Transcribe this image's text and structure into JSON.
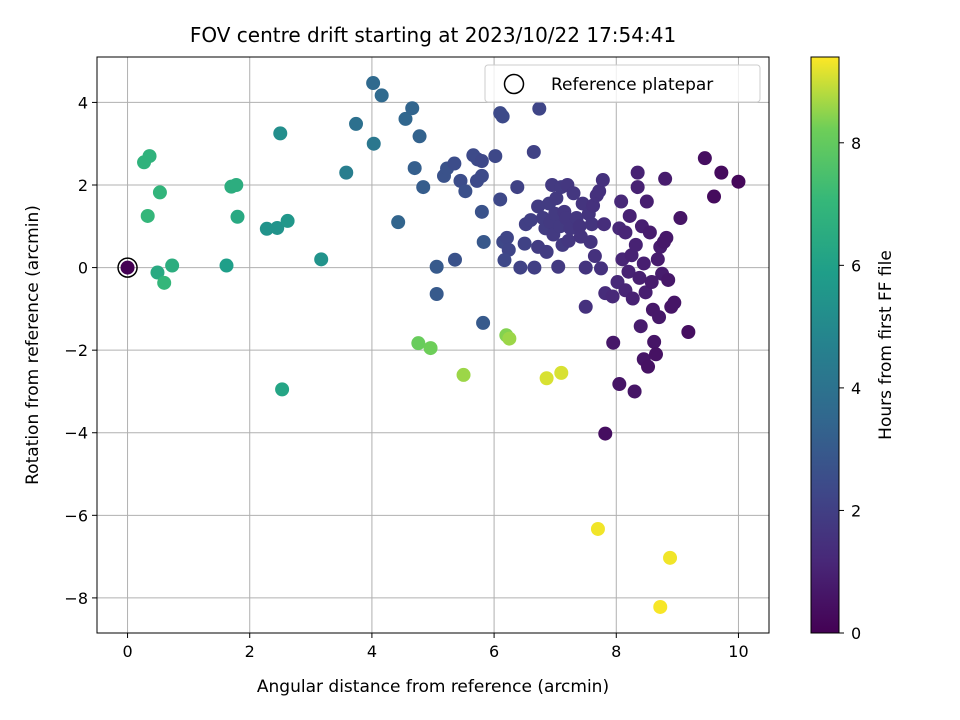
{
  "chart_data": {
    "type": "scatter",
    "title": "FOV centre drift starting at 2023/10/22 17:54:41",
    "xlabel": "Angular distance from reference (arcmin)",
    "ylabel": "Rotation from reference (arcmin)",
    "colorbar_label": "Hours from first FF file",
    "xlim": [
      -0.5,
      10.5
    ],
    "ylim": [
      -8.85,
      5.1
    ],
    "xticks": [
      0,
      2,
      4,
      6,
      8,
      10
    ],
    "yticks": [
      -8,
      -6,
      -4,
      -2,
      0,
      2,
      4
    ],
    "colorbar_range": [
      0,
      9.4
    ],
    "colorbar_ticks": [
      0,
      2,
      4,
      6,
      8
    ],
    "colormap": "viridis",
    "grid": true,
    "legend": {
      "position": "top-right",
      "entries": [
        "Reference platepar"
      ]
    },
    "reference_point": {
      "x": 0,
      "y": 0
    },
    "points": [
      {
        "x": 0.0,
        "y": 0.0,
        "t": 0.0
      },
      {
        "x": 0.49,
        "y": -0.12,
        "t": 6.4
      },
      {
        "x": 0.6,
        "y": -0.37,
        "t": 7.0
      },
      {
        "x": 0.73,
        "y": 0.05,
        "t": 6.6
      },
      {
        "x": 0.27,
        "y": 2.55,
        "t": 6.8
      },
      {
        "x": 0.36,
        "y": 2.7,
        "t": 6.8
      },
      {
        "x": 0.53,
        "y": 1.82,
        "t": 6.9
      },
      {
        "x": 0.33,
        "y": 1.25,
        "t": 7.0
      },
      {
        "x": 1.62,
        "y": 0.05,
        "t": 5.9
      },
      {
        "x": 1.7,
        "y": 1.96,
        "t": 6.6
      },
      {
        "x": 1.78,
        "y": 2.0,
        "t": 6.6
      },
      {
        "x": 1.8,
        "y": 1.23,
        "t": 6.4
      },
      {
        "x": 2.28,
        "y": 0.94,
        "t": 5.4
      },
      {
        "x": 2.45,
        "y": 0.96,
        "t": 5.4
      },
      {
        "x": 2.5,
        "y": 3.25,
        "t": 5.2
      },
      {
        "x": 2.62,
        "y": 1.13,
        "t": 5.6
      },
      {
        "x": 2.53,
        "y": -2.95,
        "t": 6.2
      },
      {
        "x": 3.17,
        "y": 0.2,
        "t": 5.4
      },
      {
        "x": 3.58,
        "y": 2.3,
        "t": 4.5
      },
      {
        "x": 3.74,
        "y": 3.48,
        "t": 3.9
      },
      {
        "x": 4.02,
        "y": 4.47,
        "t": 3.6
      },
      {
        "x": 4.16,
        "y": 4.17,
        "t": 3.6
      },
      {
        "x": 4.03,
        "y": 3.0,
        "t": 4.2
      },
      {
        "x": 4.43,
        "y": 1.1,
        "t": 3.4
      },
      {
        "x": 4.55,
        "y": 3.6,
        "t": 3.5
      },
      {
        "x": 4.66,
        "y": 3.86,
        "t": 3.4
      },
      {
        "x": 4.78,
        "y": 3.18,
        "t": 3.3
      },
      {
        "x": 4.7,
        "y": 2.41,
        "t": 3.2
      },
      {
        "x": 4.84,
        "y": 1.95,
        "t": 3.1
      },
      {
        "x": 4.76,
        "y": -1.83,
        "t": 8.1
      },
      {
        "x": 4.96,
        "y": -1.95,
        "t": 8.2
      },
      {
        "x": 5.06,
        "y": 0.02,
        "t": 3.0
      },
      {
        "x": 5.06,
        "y": -0.64,
        "t": 3.0
      },
      {
        "x": 5.18,
        "y": 2.22,
        "t": 2.7
      },
      {
        "x": 5.23,
        "y": 2.4,
        "t": 2.7
      },
      {
        "x": 5.35,
        "y": 2.52,
        "t": 2.5
      },
      {
        "x": 5.36,
        "y": 0.19,
        "t": 2.7
      },
      {
        "x": 5.45,
        "y": 2.1,
        "t": 2.5
      },
      {
        "x": 5.53,
        "y": 1.85,
        "t": 2.6
      },
      {
        "x": 5.5,
        "y": -2.6,
        "t": 8.6
      },
      {
        "x": 5.66,
        "y": 2.72,
        "t": 2.4
      },
      {
        "x": 5.73,
        "y": 2.62,
        "t": 2.4
      },
      {
        "x": 5.8,
        "y": 2.58,
        "t": 2.3
      },
      {
        "x": 5.8,
        "y": 2.22,
        "t": 2.4
      },
      {
        "x": 5.72,
        "y": 2.1,
        "t": 2.4
      },
      {
        "x": 5.8,
        "y": 1.35,
        "t": 2.7
      },
      {
        "x": 5.83,
        "y": 0.62,
        "t": 2.9
      },
      {
        "x": 5.82,
        "y": -1.34,
        "t": 3.0
      },
      {
        "x": 6.02,
        "y": 2.7,
        "t": 2.3
      },
      {
        "x": 6.1,
        "y": 3.74,
        "t": 2.4
      },
      {
        "x": 6.14,
        "y": 3.66,
        "t": 2.4
      },
      {
        "x": 6.1,
        "y": 1.65,
        "t": 2.3
      },
      {
        "x": 6.15,
        "y": 0.62,
        "t": 2.3
      },
      {
        "x": 6.21,
        "y": 0.72,
        "t": 2.2
      },
      {
        "x": 6.24,
        "y": 0.43,
        "t": 2.2
      },
      {
        "x": 6.17,
        "y": 0.18,
        "t": 2.3
      },
      {
        "x": 6.2,
        "y": -1.64,
        "t": 8.4
      },
      {
        "x": 6.25,
        "y": -1.72,
        "t": 8.6
      },
      {
        "x": 6.38,
        "y": 1.95,
        "t": 2.1
      },
      {
        "x": 6.43,
        "y": 0.0,
        "t": 2.1
      },
      {
        "x": 6.5,
        "y": 0.58,
        "t": 2.1
      },
      {
        "x": 6.52,
        "y": 1.05,
        "t": 2.0
      },
      {
        "x": 6.6,
        "y": 1.15,
        "t": 2.0
      },
      {
        "x": 6.65,
        "y": 2.8,
        "t": 2.1
      },
      {
        "x": 6.66,
        "y": 0.0,
        "t": 2.0
      },
      {
        "x": 6.74,
        "y": 3.85,
        "t": 2.2
      },
      {
        "x": 6.72,
        "y": 1.48,
        "t": 1.9
      },
      {
        "x": 6.72,
        "y": 0.5,
        "t": 1.9
      },
      {
        "x": 6.8,
        "y": 1.2,
        "t": 1.9
      },
      {
        "x": 6.84,
        "y": 0.95,
        "t": 1.9
      },
      {
        "x": 6.86,
        "y": 0.38,
        "t": 1.9
      },
      {
        "x": 6.9,
        "y": 1.55,
        "t": 1.9
      },
      {
        "x": 6.92,
        "y": 1.1,
        "t": 1.8
      },
      {
        "x": 6.95,
        "y": 2.0,
        "t": 1.8
      },
      {
        "x": 6.97,
        "y": 0.8,
        "t": 1.8
      },
      {
        "x": 7.0,
        "y": 1.3,
        "t": 1.8
      },
      {
        "x": 7.02,
        "y": 1.68,
        "t": 1.8
      },
      {
        "x": 7.05,
        "y": 0.02,
        "t": 1.8
      },
      {
        "x": 7.08,
        "y": 1.0,
        "t": 1.8
      },
      {
        "x": 7.1,
        "y": 1.95,
        "t": 1.8
      },
      {
        "x": 7.12,
        "y": 0.55,
        "t": 1.8
      },
      {
        "x": 7.15,
        "y": 1.35,
        "t": 1.7
      },
      {
        "x": 7.18,
        "y": 1.2,
        "t": 1.7
      },
      {
        "x": 7.2,
        "y": 2.0,
        "t": 1.7
      },
      {
        "x": 7.22,
        "y": 0.65,
        "t": 1.7
      },
      {
        "x": 7.25,
        "y": 0.95,
        "t": 1.7
      },
      {
        "x": 7.3,
        "y": 1.8,
        "t": 1.7
      },
      {
        "x": 7.35,
        "y": 1.2,
        "t": 1.7
      },
      {
        "x": 7.4,
        "y": 1.0,
        "t": 1.6
      },
      {
        "x": 7.42,
        "y": 0.75,
        "t": 1.6
      },
      {
        "x": 7.45,
        "y": 1.55,
        "t": 1.6
      },
      {
        "x": 7.5,
        "y": 0.0,
        "t": 1.6
      },
      {
        "x": 7.5,
        "y": -0.95,
        "t": 1.5
      },
      {
        "x": 7.55,
        "y": 1.3,
        "t": 1.6
      },
      {
        "x": 7.58,
        "y": 0.62,
        "t": 1.6
      },
      {
        "x": 7.6,
        "y": 1.05,
        "t": 1.6
      },
      {
        "x": 7.62,
        "y": 1.5,
        "t": 1.5
      },
      {
        "x": 7.65,
        "y": 0.28,
        "t": 1.5
      },
      {
        "x": 7.68,
        "y": 1.75,
        "t": 1.5
      },
      {
        "x": 7.72,
        "y": 1.85,
        "t": 1.5
      },
      {
        "x": 7.78,
        "y": 2.12,
        "t": 1.5
      },
      {
        "x": 7.75,
        "y": -0.02,
        "t": 1.5
      },
      {
        "x": 7.8,
        "y": 1.05,
        "t": 1.4
      },
      {
        "x": 7.82,
        "y": -0.62,
        "t": 1.3
      },
      {
        "x": 7.82,
        "y": -4.02,
        "t": 0.4
      },
      {
        "x": 7.95,
        "y": -1.82,
        "t": 0.7
      },
      {
        "x": 7.94,
        "y": -0.7,
        "t": 1.2
      },
      {
        "x": 8.02,
        "y": -0.35,
        "t": 1.2
      },
      {
        "x": 8.05,
        "y": 0.95,
        "t": 1.2
      },
      {
        "x": 8.08,
        "y": 1.6,
        "t": 1.2
      },
      {
        "x": 8.1,
        "y": 0.2,
        "t": 1.1
      },
      {
        "x": 8.05,
        "y": -2.82,
        "t": 0.6
      },
      {
        "x": 8.15,
        "y": -0.55,
        "t": 1.1
      },
      {
        "x": 8.15,
        "y": 0.85,
        "t": 1.1
      },
      {
        "x": 8.2,
        "y": -0.1,
        "t": 1.0
      },
      {
        "x": 8.22,
        "y": 1.25,
        "t": 1.0
      },
      {
        "x": 8.25,
        "y": 0.3,
        "t": 1.0
      },
      {
        "x": 8.27,
        "y": -0.75,
        "t": 1.0
      },
      {
        "x": 8.3,
        "y": -3.0,
        "t": 0.6
      },
      {
        "x": 8.32,
        "y": 0.55,
        "t": 1.0
      },
      {
        "x": 8.35,
        "y": 2.3,
        "t": 1.0
      },
      {
        "x": 8.35,
        "y": 1.95,
        "t": 1.0
      },
      {
        "x": 8.38,
        "y": -0.25,
        "t": 0.9
      },
      {
        "x": 8.4,
        "y": -1.42,
        "t": 0.8
      },
      {
        "x": 8.42,
        "y": 1.0,
        "t": 0.9
      },
      {
        "x": 8.45,
        "y": -2.22,
        "t": 0.6
      },
      {
        "x": 8.45,
        "y": 0.1,
        "t": 0.9
      },
      {
        "x": 8.48,
        "y": -0.6,
        "t": 0.9
      },
      {
        "x": 8.5,
        "y": 1.6,
        "t": 0.9
      },
      {
        "x": 8.52,
        "y": -2.4,
        "t": 0.5
      },
      {
        "x": 8.55,
        "y": 0.85,
        "t": 0.8
      },
      {
        "x": 8.58,
        "y": -0.35,
        "t": 0.8
      },
      {
        "x": 8.6,
        "y": -1.02,
        "t": 0.7
      },
      {
        "x": 8.62,
        "y": -1.8,
        "t": 0.6
      },
      {
        "x": 8.65,
        "y": -2.1,
        "t": 0.5
      },
      {
        "x": 8.68,
        "y": 0.2,
        "t": 0.8
      },
      {
        "x": 8.7,
        "y": -1.2,
        "t": 0.7
      },
      {
        "x": 8.72,
        "y": 0.5,
        "t": 0.8
      },
      {
        "x": 8.75,
        "y": -0.15,
        "t": 0.8
      },
      {
        "x": 8.78,
        "y": 0.62,
        "t": 0.7
      },
      {
        "x": 8.8,
        "y": 2.15,
        "t": 0.8
      },
      {
        "x": 8.82,
        "y": 0.72,
        "t": 0.7
      },
      {
        "x": 8.85,
        "y": -0.3,
        "t": 0.7
      },
      {
        "x": 8.9,
        "y": -0.95,
        "t": 0.6
      },
      {
        "x": 8.95,
        "y": -0.85,
        "t": 0.6
      },
      {
        "x": 9.05,
        "y": 1.2,
        "t": 0.6
      },
      {
        "x": 9.18,
        "y": -1.56,
        "t": 0.4
      },
      {
        "x": 9.45,
        "y": 2.65,
        "t": 0.4
      },
      {
        "x": 9.6,
        "y": 1.72,
        "t": 0.3
      },
      {
        "x": 9.72,
        "y": 2.3,
        "t": 0.3
      },
      {
        "x": 10.0,
        "y": 2.08,
        "t": 0.2
      },
      {
        "x": 6.86,
        "y": -2.68,
        "t": 9.1
      },
      {
        "x": 7.1,
        "y": -2.55,
        "t": 9.1
      },
      {
        "x": 7.7,
        "y": -6.33,
        "t": 9.3
      },
      {
        "x": 8.88,
        "y": -7.03,
        "t": 9.3
      },
      {
        "x": 8.72,
        "y": -8.22,
        "t": 9.35
      }
    ]
  }
}
